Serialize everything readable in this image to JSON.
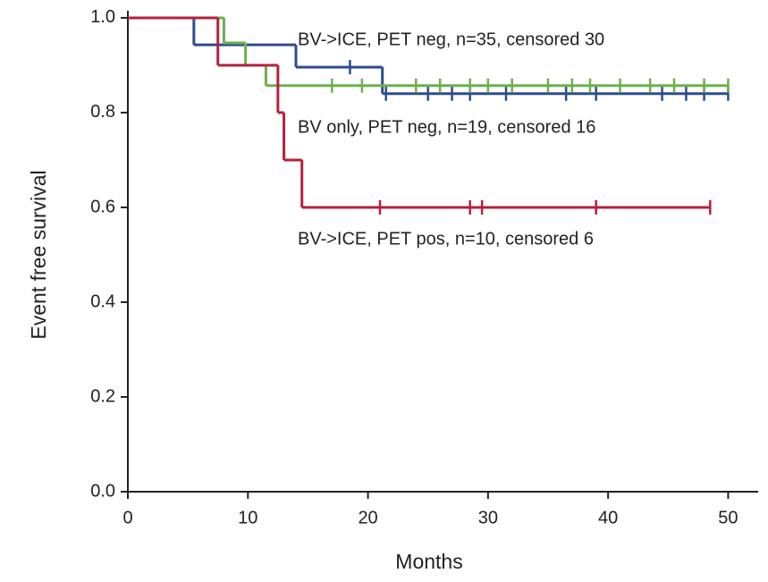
{
  "chart_data": {
    "type": "step",
    "x_label": "Months",
    "y_label": "Event free survival",
    "xlim": [
      0,
      52.5
    ],
    "ylim": [
      0,
      1.015
    ],
    "xticks": [
      0,
      10,
      20,
      30,
      40,
      50
    ],
    "yticks": [
      {
        "value": 0,
        "label": "0.0"
      },
      0.2,
      0.4,
      0.6,
      0.8,
      {
        "value": 1,
        "label": "1.0"
      }
    ],
    "series": [
      {
        "name": "BV->ICE, PET neg, n=35, censored 30",
        "color": "#2f4d8c",
        "x": [
          0,
          5.5,
          14,
          21.2,
          50
        ],
        "values": [
          1,
          0.943,
          0.896,
          0.84,
          0.84
        ],
        "censored_x": [
          18.5,
          21.5,
          25,
          27,
          28.5,
          31.5,
          36.5,
          39,
          44.5,
          46.5,
          48,
          50
        ],
        "censored_values": [
          0.896,
          0.84,
          0.84,
          0.84,
          0.84,
          0.84,
          0.84,
          0.84,
          0.84,
          0.84,
          0.84,
          0.84
        ]
      },
      {
        "name": "BV only, PET neg, n=19, censored 16",
        "color": "#6cb04a",
        "x": [
          0,
          8,
          9.8,
          11.5,
          50
        ],
        "values": [
          1,
          0.947,
          0.9,
          0.857,
          0.857
        ],
        "censored_x": [
          17,
          19.5,
          24,
          26,
          28.5,
          30,
          32,
          35,
          37,
          38.5,
          41,
          43.5,
          45.5,
          48,
          50
        ],
        "censored_values": [
          0.857,
          0.857,
          0.857,
          0.857,
          0.857,
          0.857,
          0.857,
          0.857,
          0.857,
          0.857,
          0.857,
          0.857,
          0.857,
          0.857,
          0.857
        ]
      },
      {
        "name": "BV->ICE, PET pos, n=10, censored 6",
        "color": "#b3203f",
        "x": [
          0,
          7.5,
          12.5,
          13,
          14.5,
          48.5
        ],
        "values": [
          1,
          0.9,
          0.8,
          0.7,
          0.6,
          0.6
        ],
        "censored_x": [
          21,
          28.5,
          29.5,
          39,
          48.5
        ],
        "censored_values": [
          0.6,
          0.6,
          0.6,
          0.6,
          0.6
        ]
      }
    ]
  }
}
